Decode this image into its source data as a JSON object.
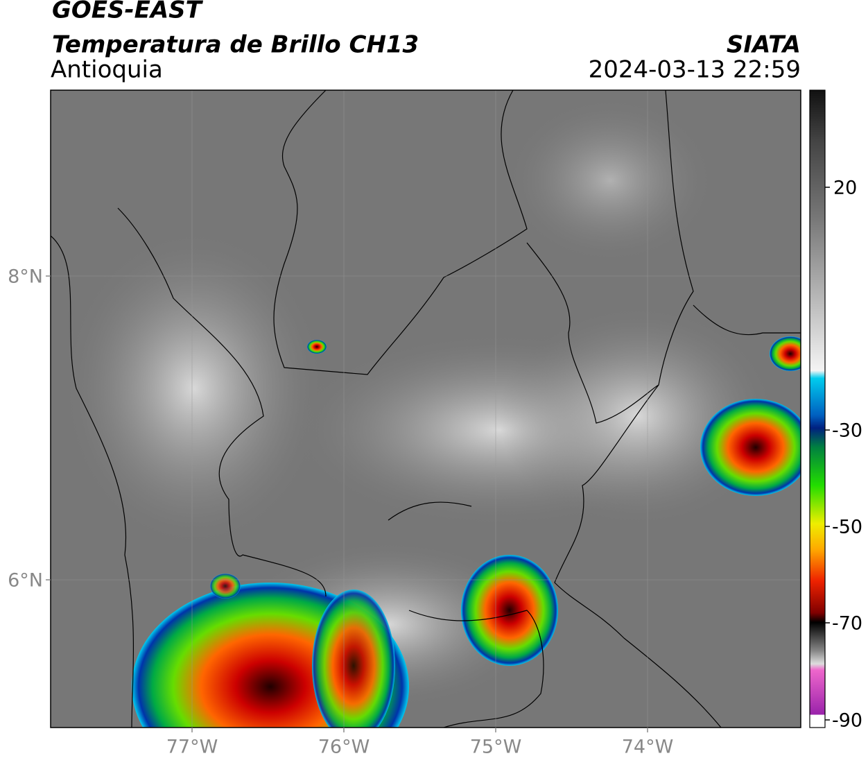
{
  "header": {
    "title": "GOES-EAST",
    "subtitle": "Temperatura de Brillo CH13",
    "region": "Antioquia",
    "source": "SIATA",
    "datetime": "2024-03-13 22:59"
  },
  "map": {
    "lat_labels": [
      "8°N",
      "6°N"
    ],
    "lon_labels": [
      "77°W",
      "76°W",
      "75°W",
      "74°W"
    ]
  },
  "colorbar": {
    "ticks": [
      20,
      -30,
      -50,
      -70,
      -90
    ]
  }
}
